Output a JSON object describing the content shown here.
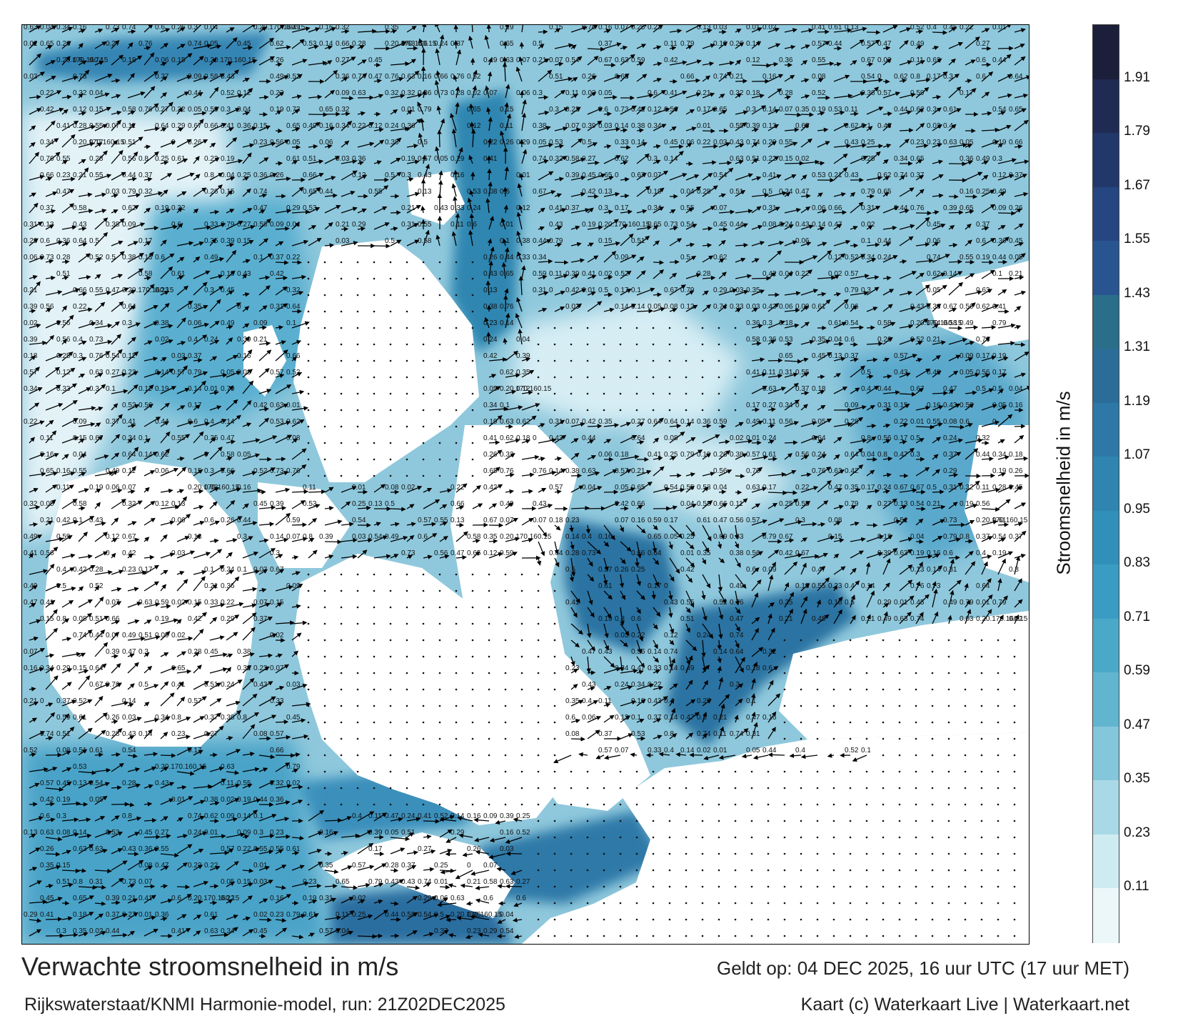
{
  "map": {
    "title": "Verwachte stroomsnelheid in m/s",
    "valid_time": "Geldt op: 04 DEC 2025, 16 uur UTC (17 uur MET)",
    "source": "Rijkswaterstaat/KNMI Harmonie-model, run: 21Z02DEC2025",
    "credit": "Kaart (c) Waterkaart Live | Waterkaart.net",
    "legend": {
      "label": "Stroomsnelheid in m/s",
      "ticks": [
        "1.91",
        "1.79",
        "1.67",
        "1.55",
        "1.43",
        "1.31",
        "1.19",
        "1.07",
        "0.95",
        "0.83",
        "0.71",
        "0.59",
        "0.47",
        "0.35",
        "0.23",
        "0.11"
      ],
      "colors": [
        "#1c1f3a",
        "#1f2b52",
        "#22386a",
        "#254680",
        "#285590",
        "#2a6e8a",
        "#2b6d98",
        "#2d78a6",
        "#2f84b0",
        "#3190ba",
        "#3a9cc2",
        "#4aa8c8",
        "#62b5cf",
        "#84c6db",
        "#a9d9e6",
        "#cfebf2",
        "#ecf7fa"
      ]
    },
    "sample_labels": [
      {
        "t": "0.23"
      },
      {
        "t": "0.15"
      },
      {
        "t": "0.22"
      },
      {
        "t": "0.24"
      },
      {
        "t": "0.12"
      },
      {
        "t": "0.13"
      },
      {
        "t": "0.20.170.160.15"
      },
      {
        "t": "0.21"
      },
      {
        "t": "0.11"
      },
      {
        "t": "0.18"
      },
      {
        "t": "0.19"
      },
      {
        "t": "0.07"
      },
      {
        "t": "0.06"
      },
      {
        "t": "0.03"
      },
      {
        "t": "0.05"
      },
      {
        "t": "0.17"
      },
      {
        "t": "0.16"
      },
      {
        "t": "0.63"
      },
      {
        "t": "0.56"
      },
      {
        "t": "0.76"
      },
      {
        "t": "0.47"
      },
      {
        "t": "0.37"
      },
      {
        "t": "0.45"
      },
      {
        "t": "0.26"
      },
      {
        "t": "0.3"
      },
      {
        "t": "0.35"
      },
      {
        "t": "0.28"
      },
      {
        "t": "0.27"
      },
      {
        "t": "0.25"
      },
      {
        "t": "0.44"
      },
      {
        "t": "0.5"
      },
      {
        "t": "0.49"
      },
      {
        "t": "0.57"
      },
      {
        "t": "0.52"
      },
      {
        "t": "0.65"
      },
      {
        "t": "0.79"
      },
      {
        "t": "0.54"
      },
      {
        "t": "0.51"
      },
      {
        "t": "0.55"
      },
      {
        "t": "0.53"
      },
      {
        "t": "0.58"
      },
      {
        "t": "0.62"
      },
      {
        "t": "0.64"
      },
      {
        "t": "0.66"
      },
      {
        "t": "0.67"
      },
      {
        "t": "0.59"
      },
      {
        "t": "0.42"
      },
      {
        "t": "0.39"
      },
      {
        "t": "0.4"
      },
      {
        "t": "0.41"
      },
      {
        "t": "0.43"
      },
      {
        "t": "0.33"
      },
      {
        "t": "0.31"
      },
      {
        "t": "0.38"
      },
      {
        "t": "0.32"
      },
      {
        "t": "0.34"
      },
      {
        "t": "0.36"
      },
      {
        "t": "0.29"
      },
      {
        "t": "0.14"
      },
      {
        "t": "0.1"
      },
      {
        "t": "0.09"
      },
      {
        "t": "0.08"
      },
      {
        "t": "0.04"
      },
      {
        "t": "0.02"
      },
      {
        "t": "0.01"
      },
      {
        "t": "0"
      },
      {
        "t": "0.73"
      },
      {
        "t": "0.74"
      },
      {
        "t": "0.8"
      },
      {
        "t": "0.6"
      },
      {
        "t": "0.61"
      }
    ]
  }
}
